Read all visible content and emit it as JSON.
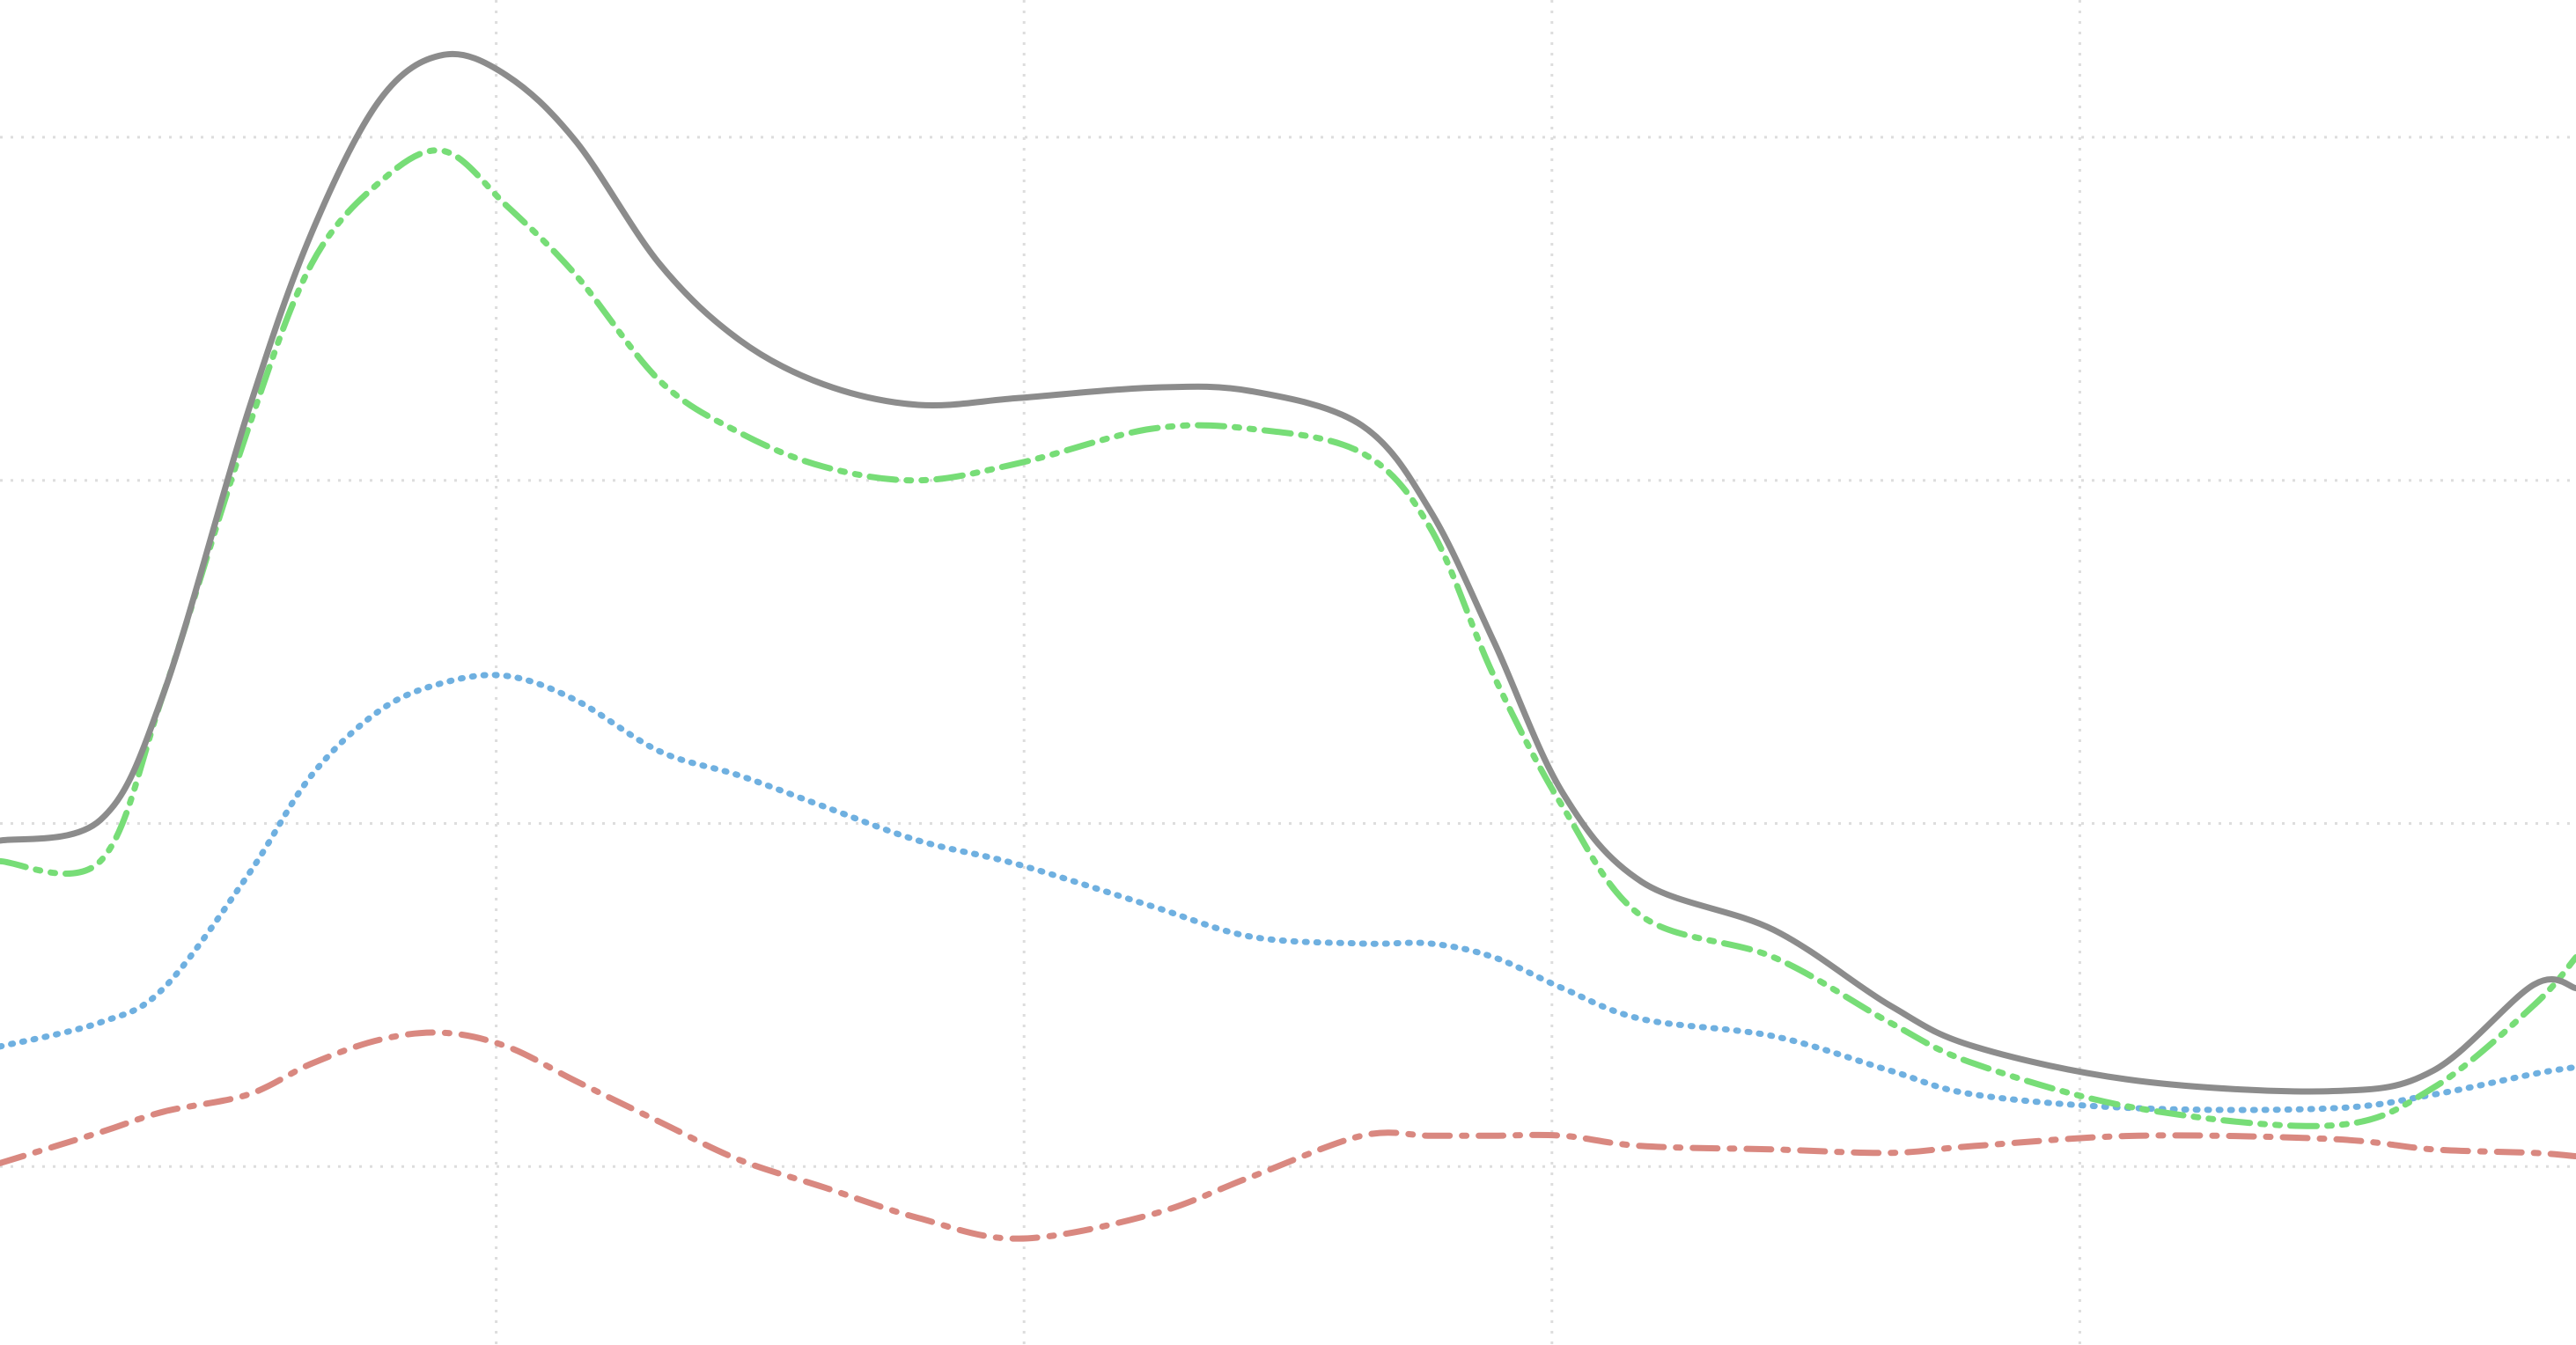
{
  "chart_data": {
    "type": "line",
    "x": [
      0.06,
      0.25,
      0.37,
      0.53,
      0.65,
      0.78,
      0.9,
      1.02,
      1.15,
      1.31,
      1.46,
      1.62,
      1.8,
      1.99,
      2.24,
      2.43,
      2.64,
      2.77,
      2.89,
      3.02,
      3.17,
      3.42,
      3.64,
      3.8,
      4.11,
      4.48,
      4.67,
      4.86,
      4.94
    ],
    "series": [
      {
        "color": "#8c8c8c",
        "dash": "solid",
        "values": [
          0.95,
          1.01,
          1.38,
          2.2,
          2.72,
          3.11,
          3.24,
          3.18,
          2.99,
          2.63,
          2.41,
          2.28,
          2.22,
          2.24,
          2.27,
          2.26,
          2.16,
          1.91,
          1.53,
          1.09,
          0.83,
          0.69,
          0.47,
          0.35,
          0.25,
          0.22,
          0.28,
          0.53,
          0.52
        ]
      },
      {
        "color": "#77dd77",
        "dash": "dash-dot-dot",
        "values": [
          0.89,
          0.89,
          1.38,
          2.15,
          2.63,
          2.87,
          2.96,
          2.8,
          2.6,
          2.29,
          2.14,
          2.04,
          2.0,
          2.05,
          2.15,
          2.15,
          2.08,
          1.86,
          1.43,
          1.05,
          0.73,
          0.61,
          0.42,
          0.3,
          0.17,
          0.12,
          0.23,
          0.47,
          0.61
        ]
      },
      {
        "color": "#6fb0e0",
        "dash": "dotted",
        "values": [
          0.35,
          0.42,
          0.52,
          0.85,
          1.14,
          1.33,
          1.41,
          1.43,
          1.36,
          1.21,
          1.14,
          1.05,
          0.95,
          0.88,
          0.76,
          0.67,
          0.65,
          0.65,
          0.61,
          0.52,
          0.43,
          0.38,
          0.28,
          0.21,
          0.17,
          0.17,
          0.21,
          0.27,
          0.29
        ]
      },
      {
        "color": "#d98880",
        "dash": "dash-dot",
        "values": [
          0.01,
          0.1,
          0.16,
          0.21,
          0.3,
          0.37,
          0.39,
          0.35,
          0.25,
          0.13,
          0.02,
          -0.06,
          -0.15,
          -0.21,
          -0.14,
          -0.03,
          0.09,
          0.09,
          0.09,
          0.09,
          0.06,
          0.05,
          0.04,
          0.06,
          0.09,
          0.08,
          0.05,
          0.04,
          0.03
        ]
      }
    ],
    "xlim": [
      0.06,
      4.94
    ],
    "ylim": [
      -0.52,
      3.4
    ],
    "xticks": [
      1,
      2,
      3,
      4
    ],
    "yticks": [
      0,
      1,
      2,
      3
    ],
    "grid": true
  }
}
